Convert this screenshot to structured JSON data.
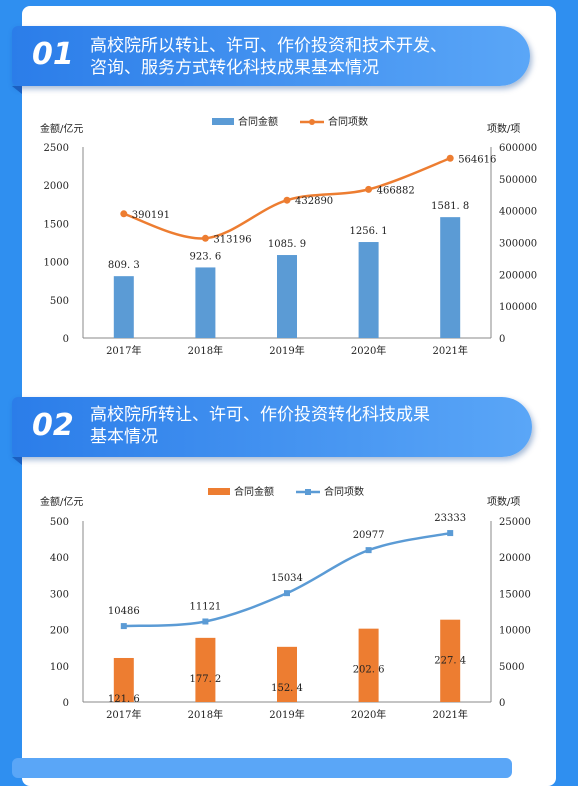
{
  "sections": [
    {
      "num": "01",
      "title_line1": "高校院所以转让、许可、作价投资和技术开发、",
      "title_line2": "咨询、服务方式转化科技成果基本情况"
    },
    {
      "num": "02",
      "title_line1": "高校院所转让、许可、作价投资转化科技成果",
      "title_line2": "基本情况"
    }
  ],
  "chart_data": [
    {
      "type": "bar",
      "categories": [
        "2017年",
        "2018年",
        "2019年",
        "2020年",
        "2021年"
      ],
      "series": [
        {
          "name": "合同金额",
          "kind": "bar",
          "axis": "left",
          "color": "#5b9bd5",
          "values": [
            809.3,
            923.6,
            1085.9,
            1256.1,
            1581.8
          ],
          "labels": [
            "809. 3",
            "923. 6",
            "1085. 9",
            "1256. 1",
            "1581. 8"
          ]
        },
        {
          "name": "合同项数",
          "kind": "line",
          "axis": "right",
          "color": "#ed7d31",
          "values": [
            390191,
            313196,
            432890,
            466882,
            564616
          ],
          "labels": [
            "390191",
            "313196",
            "432890",
            "466882",
            "564616"
          ]
        }
      ],
      "ylabel_left": "金额/亿元",
      "ylabel_right": "项数/项",
      "ylim_left": [
        0,
        2500
      ],
      "ylim_right": [
        0,
        600000
      ],
      "yticks_left": [
        "0",
        "500",
        "1000",
        "1500",
        "2000",
        "2500"
      ],
      "yticks_right": [
        "0",
        "100000",
        "200000",
        "300000",
        "400000",
        "500000",
        "600000"
      ],
      "legend": "top",
      "grid": false
    },
    {
      "type": "bar",
      "categories": [
        "2017年",
        "2018年",
        "2019年",
        "2020年",
        "2021年"
      ],
      "series": [
        {
          "name": "合同金额",
          "kind": "bar",
          "axis": "left",
          "color": "#ed7d31",
          "values": [
            121.6,
            177.2,
            152.4,
            202.6,
            227.4
          ],
          "labels": [
            "121. 6",
            "177. 2",
            "152. 4",
            "202. 6",
            "227. 4"
          ]
        },
        {
          "name": "合同项数",
          "kind": "line",
          "axis": "right",
          "color": "#5b9bd5",
          "values": [
            10486,
            11121,
            15034,
            20977,
            23333
          ],
          "labels": [
            "10486",
            "11121",
            "15034",
            "20977",
            "23333"
          ]
        }
      ],
      "ylabel_left": "金额/亿元",
      "ylabel_right": "项数/项",
      "ylim_left": [
        0,
        500
      ],
      "ylim_right": [
        0,
        25000
      ],
      "yticks_left": [
        "0",
        "100",
        "200",
        "300",
        "400",
        "500"
      ],
      "yticks_right": [
        "0",
        "5000",
        "10000",
        "15000",
        "20000",
        "25000"
      ],
      "legend": "top",
      "grid": false
    }
  ]
}
